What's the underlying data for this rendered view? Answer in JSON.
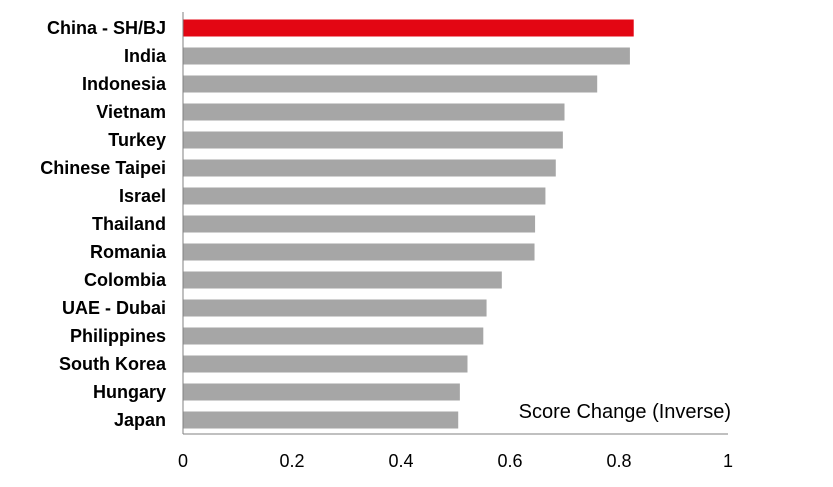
{
  "chart_data": {
    "type": "bar",
    "orientation": "horizontal",
    "categories": [
      "China - SH/BJ",
      "India",
      "Indonesia",
      "Vietnam",
      "Turkey",
      "Chinese Taipei",
      "Israel",
      "Thailand",
      "Romania",
      "Colombia",
      "UAE - Dubai",
      "Philippines",
      "South Korea",
      "Hungary",
      "Japan"
    ],
    "values": [
      0.827,
      0.82,
      0.76,
      0.7,
      0.697,
      0.684,
      0.665,
      0.646,
      0.645,
      0.585,
      0.557,
      0.551,
      0.522,
      0.508,
      0.505
    ],
    "highlight_index": 0,
    "xlim": [
      0,
      1
    ],
    "xticks": [
      "0",
      "0.2",
      "0.4",
      "0.6",
      "0.8",
      "1"
    ],
    "xlabel": "Score Change (Inverse)",
    "title": "",
    "ylabel": "",
    "grid": false,
    "colors": {
      "highlight": "#e30613",
      "bar": "#a6a6a6",
      "axis": "#808080"
    }
  }
}
